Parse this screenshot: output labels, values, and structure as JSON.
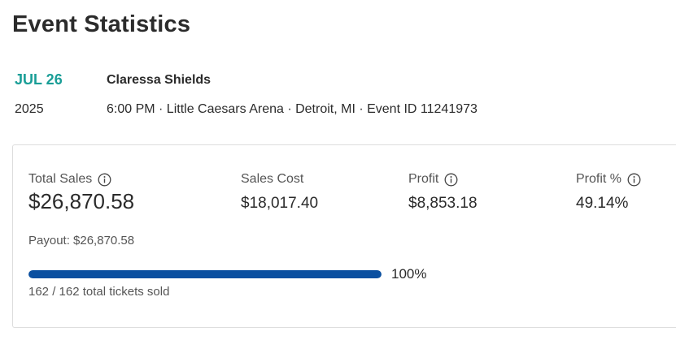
{
  "page": {
    "title": "Event Statistics"
  },
  "event": {
    "month_day": "JUL 26",
    "year": "2025",
    "name": "Claressa Shields",
    "details": "6:00 PM · Little Caesars Arena · Detroit, MI · Event ID 11241973"
  },
  "stats": {
    "total_sales": {
      "label": "Total Sales",
      "value": "$26,870.58",
      "icon": "info-icon"
    },
    "sales_cost": {
      "label": "Sales Cost",
      "value": "$18,017.40"
    },
    "profit": {
      "label": "Profit",
      "value": "$8,853.18",
      "icon": "info-icon"
    },
    "profit_pct": {
      "label": "Profit %",
      "value": "49.14%",
      "icon": "info-icon"
    },
    "payout": "Payout: $26,870.58"
  },
  "tickets": {
    "sold_fraction": 1.0,
    "percent_label": "100%",
    "summary": "162 / 162 total tickets sold"
  },
  "colors": {
    "accent_date": "#1a9e97",
    "progress_fill": "#0a4fa0"
  }
}
